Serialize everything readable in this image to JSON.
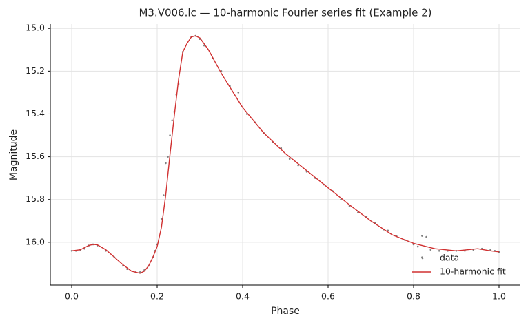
{
  "chart_data": {
    "type": "line",
    "title": "M3.V006.lc — 10-harmonic Fourier series fit (Example 2)",
    "x_label": "Phase",
    "y_label": "Magnitude",
    "xlim": [
      -0.05,
      1.05
    ],
    "ylim": [
      16.2,
      14.98
    ],
    "xticks": [
      {
        "value": 0,
        "label": "0.0"
      },
      0.2,
      0.4,
      0.6,
      0.8,
      {
        "value": 1,
        "label": "1.0"
      }
    ],
    "yticks": [
      {
        "value": 15,
        "label": "15.0"
      },
      15.2,
      15.4,
      15.6,
      15.8,
      {
        "value": 16,
        "label": "16.0"
      }
    ],
    "grid": true,
    "legend": "lower right",
    "series": [
      {
        "name": "data",
        "type": "scatter",
        "color": "#808080",
        "x": [
          0.0,
          0.01,
          0.02,
          0.03,
          0.04,
          0.05,
          0.06,
          0.08,
          0.1,
          0.12,
          0.13,
          0.15,
          0.16,
          0.17,
          0.18,
          0.19,
          0.195,
          0.2,
          0.21,
          0.215,
          0.22,
          0.225,
          0.23,
          0.235,
          0.24,
          0.245,
          0.25,
          0.26,
          0.28,
          0.29,
          0.3,
          0.31,
          0.33,
          0.35,
          0.37,
          0.39,
          0.41,
          0.43,
          0.45,
          0.47,
          0.49,
          0.51,
          0.53,
          0.55,
          0.57,
          0.59,
          0.61,
          0.63,
          0.65,
          0.67,
          0.69,
          0.71,
          0.73,
          0.74,
          0.76,
          0.78,
          0.8,
          0.81,
          0.82,
          0.82,
          0.83,
          0.84,
          0.86,
          0.88,
          0.9,
          0.92,
          0.94,
          0.96,
          0.98,
          0.99,
          1.0
        ],
        "values": [
          16.04,
          16.04,
          16.035,
          16.03,
          16.015,
          16.01,
          16.015,
          16.04,
          16.07,
          16.11,
          16.125,
          16.14,
          16.14,
          16.13,
          16.11,
          16.07,
          16.04,
          16.01,
          15.89,
          15.78,
          15.63,
          15.6,
          15.5,
          15.43,
          15.39,
          15.31,
          15.26,
          15.11,
          15.04,
          15.035,
          15.05,
          15.08,
          15.14,
          15.2,
          15.27,
          15.3,
          15.4,
          15.44,
          15.49,
          15.53,
          15.56,
          15.61,
          15.64,
          15.67,
          15.7,
          15.73,
          15.76,
          15.8,
          15.83,
          15.86,
          15.88,
          15.91,
          15.94,
          15.945,
          15.97,
          15.99,
          16.01,
          16.02,
          15.97,
          16.07,
          15.975,
          16.035,
          16.04,
          16.04,
          16.04,
          16.04,
          16.035,
          16.03,
          16.035,
          16.04,
          16.045
        ]
      },
      {
        "name": "10-harmonic fit",
        "type": "line",
        "color": "#d03030",
        "x": [
          0,
          0.02,
          0.04,
          0.05,
          0.06,
          0.08,
          0.1,
          0.12,
          0.14,
          0.16,
          0.17,
          0.18,
          0.19,
          0.2,
          0.21,
          0.22,
          0.23,
          0.24,
          0.25,
          0.26,
          0.27,
          0.28,
          0.29,
          0.3,
          0.32,
          0.35,
          0.4,
          0.45,
          0.5,
          0.55,
          0.6,
          0.65,
          0.7,
          0.75,
          0.8,
          0.85,
          0.9,
          0.95,
          0.98,
          1.0
        ],
        "values": [
          16.04,
          16.035,
          16.015,
          16.01,
          16.012,
          16.035,
          16.07,
          16.105,
          16.135,
          16.145,
          16.135,
          16.11,
          16.07,
          16.02,
          15.93,
          15.78,
          15.59,
          15.41,
          15.24,
          15.11,
          15.07,
          15.04,
          15.035,
          15.045,
          15.1,
          15.21,
          15.37,
          15.49,
          15.585,
          15.665,
          15.745,
          15.825,
          15.9,
          15.965,
          16.005,
          16.03,
          16.04,
          16.03,
          16.04,
          16.045
        ]
      }
    ]
  }
}
